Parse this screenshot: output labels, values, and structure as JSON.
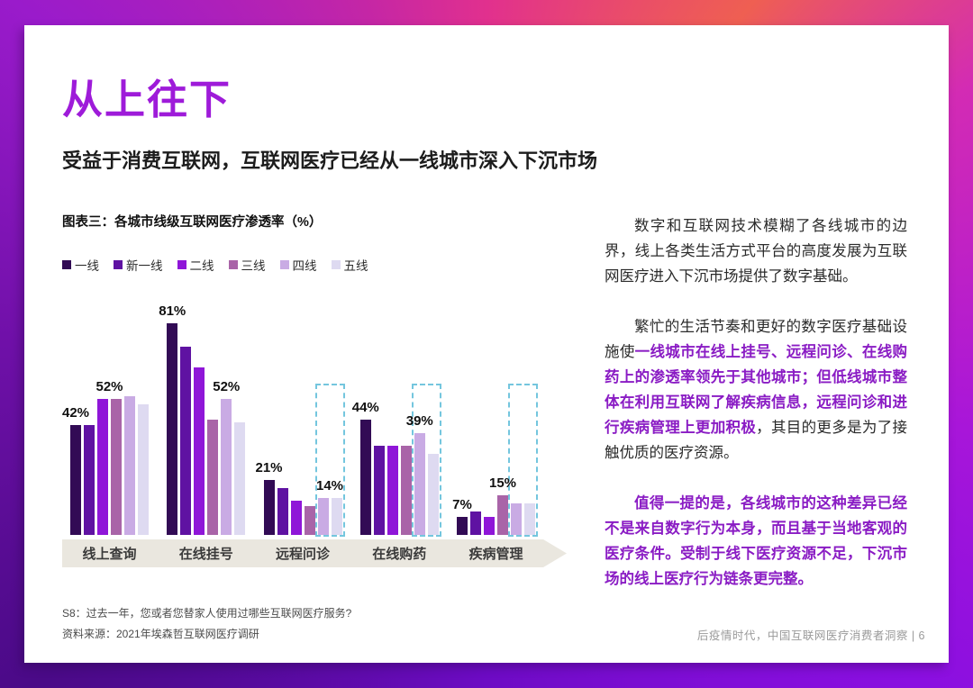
{
  "page": {
    "title": "从上往下",
    "subtitle": "受益于消费互联网，互联网医疗已经从一线城市深入下沉市场",
    "footer": "后疫情时代，中国互联网医疗消费者洞察 | 6"
  },
  "chart": {
    "caption": "图表三：各城市线级互联网医疗渗透率（%）",
    "notes": [
      "S8：过去一年，您或者您替家人使用过哪些互联网医疗服务?",
      "资料来源：2021年埃森哲互联网医疗调研"
    ],
    "highlight_color": "#74c6de",
    "axis_arrow_color": "#eae7df"
  },
  "chart_data": {
    "type": "bar",
    "title": "各城市线级互联网医疗渗透率（%）",
    "categories": [
      "线上查询",
      "在线挂号",
      "远程问诊",
      "在线购药",
      "疾病管理"
    ],
    "series": [
      {
        "name": "一线",
        "color": "#320b55",
        "values": [
          42,
          81,
          21,
          44,
          7
        ]
      },
      {
        "name": "新一线",
        "color": "#5f12a2",
        "values": [
          42,
          72,
          18,
          34,
          9
        ]
      },
      {
        "name": "二线",
        "color": "#8f16d8",
        "values": [
          52,
          64,
          13,
          34,
          7
        ]
      },
      {
        "name": "三线",
        "color": "#a964a8",
        "values": [
          52,
          44,
          11,
          34,
          15
        ]
      },
      {
        "name": "四线",
        "color": "#c9abe4",
        "values": [
          53,
          52,
          14,
          39,
          12
        ]
      },
      {
        "name": "五线",
        "color": "#dedaf1",
        "values": [
          50,
          43,
          14,
          31,
          12
        ]
      }
    ],
    "value_labels": [
      {
        "category": 0,
        "at": 0,
        "text": "42%"
      },
      {
        "category": 0,
        "at": 2.5,
        "text": "52%"
      },
      {
        "category": 1,
        "at": 0,
        "text": "81%"
      },
      {
        "category": 1,
        "at": 4,
        "text": "52%"
      },
      {
        "category": 2,
        "at": 0,
        "text": "21%"
      },
      {
        "category": 2,
        "at": 4.5,
        "text": "14%"
      },
      {
        "category": 3,
        "at": 0,
        "text": "44%"
      },
      {
        "category": 3,
        "at": 4,
        "text": "39%"
      },
      {
        "category": 4,
        "at": 0,
        "text": "7%"
      },
      {
        "category": 4,
        "at": 3,
        "text": "15%"
      }
    ],
    "highlight_boxes": [
      {
        "category": 2,
        "series_from": 4,
        "series_to": 5,
        "top_pct": 58.5
      },
      {
        "category": 3,
        "series_from": 4,
        "series_to": 5,
        "top_pct": 58.5
      },
      {
        "category": 4,
        "series_from": 4,
        "series_to": 5,
        "top_pct": 58.5
      }
    ],
    "ylim": [
      0,
      90
    ],
    "legend_position": "top",
    "grid": false
  },
  "paragraphs": [
    {
      "segments": [
        {
          "style": "normal",
          "text": "数字和互联网技术模糊了各线城市的边界，线上各类生活方式平台的高度发展为互联网医疗进入下沉市场提供了数字基础。"
        }
      ]
    },
    {
      "segments": [
        {
          "style": "normal",
          "text": "繁忙的生活节奏和更好的数字医疗基础设施使"
        },
        {
          "style": "em",
          "text": "一线城市在线上挂号、远程问诊、在线购药上的渗透率领先于其他城市；但低线城市整体在利用互联网了解疾病信息，远程问诊和进行疾病管理上更加积极"
        },
        {
          "style": "normal",
          "text": "，其目的更多是为了接触优质的医疗资源。"
        }
      ]
    },
    {
      "segments": [
        {
          "style": "em",
          "text": "值得一提的是，各线城市的这种差异已经不是来自数字行为本身，而且基于当地客观的医疗条件。受制于线下医疗资源不足，下沉市场的线上医疗行为链条更完整。"
        }
      ]
    }
  ]
}
